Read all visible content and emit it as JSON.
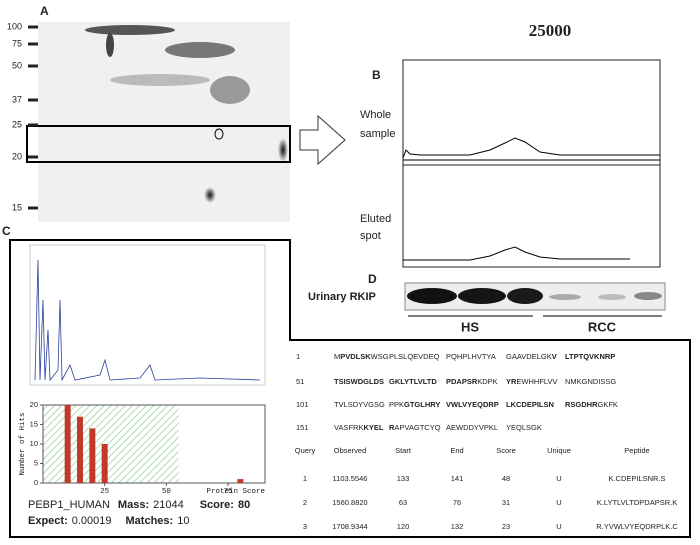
{
  "panel_a": {
    "label": "A",
    "markers": [
      "100",
      "75",
      "50",
      "37",
      "25",
      "20",
      "15"
    ]
  },
  "panel_b": {
    "label": "B",
    "title": "25000",
    "trace_1": [
      "Whole",
      "sample"
    ],
    "trace_2": [
      "Eluted",
      "spot"
    ]
  },
  "panel_c": {
    "label": "C",
    "histogram": {
      "ylabel": "Number of Hits",
      "xlabel": "Protein Score",
      "color": "#c0392b",
      "xlim": [
        0,
        90
      ],
      "ylim": [
        0,
        20
      ],
      "xticks": [
        25,
        50,
        75
      ],
      "yticks": [
        0,
        5,
        10,
        15,
        20
      ],
      "x": [
        10,
        15,
        20,
        25,
        80
      ],
      "values": [
        20,
        17,
        14,
        10,
        1
      ]
    },
    "protein": "PEBP1_HUMAN",
    "mass_label": "Mass:",
    "mass": "21044",
    "score_label": "Score:",
    "score": "80",
    "expect_label": "Expect:",
    "expect": "0.00019",
    "matches_label": "Matches:",
    "matches": "10"
  },
  "panel_d": {
    "label": "D",
    "row_label": "Urinary RKIP",
    "groups": [
      "HS",
      "RCC"
    ]
  },
  "sequence": [
    {
      "pos": "1",
      "columns": [
        [
          {
            "text": "M",
            "bold": false
          },
          {
            "text": "PVDLSK",
            "bold": true
          },
          {
            "text": "WSG",
            "bold": false
          }
        ],
        [
          {
            "text": "PLSLQEVDEQ",
            "bold": false
          }
        ],
        [
          {
            "text": "PQHPLHVTYA",
            "bold": false
          }
        ],
        [
          {
            "text": "GAAVDELGK",
            "bold": false
          },
          {
            "text": "V",
            "bold": true
          }
        ],
        [
          {
            "text": "LTPTQVKNRP",
            "bold": true
          }
        ]
      ]
    },
    {
      "pos": "51",
      "columns": [
        [
          {
            "text": "TSISWDGLDS",
            "bold": true
          }
        ],
        [
          {
            "text": "GKLYTLVLTD",
            "bold": true
          }
        ],
        [
          {
            "text": "PDAPSR",
            "bold": true
          },
          {
            "text": "KDPK",
            "bold": false
          }
        ],
        [
          {
            "text": "YR",
            "bold": true
          },
          {
            "text": "EWHHFLVV",
            "bold": false
          }
        ],
        [
          {
            "text": "NMKGNDISSG",
            "bold": false
          }
        ]
      ]
    },
    {
      "pos": "101",
      "columns": [
        [
          {
            "text": "TVLSDYVGSG",
            "bold": false
          }
        ],
        [
          {
            "text": "PPK",
            "bold": false
          },
          {
            "text": "GTGLHRY",
            "bold": true
          }
        ],
        [
          {
            "text": "VWLVYEQDRP",
            "bold": true
          }
        ],
        [
          {
            "text": "LKCDEPILSN",
            "bold": true
          }
        ],
        [
          {
            "text": "RSGDHR",
            "bold": true
          },
          {
            "text": "GKFK",
            "bold": false
          }
        ]
      ]
    },
    {
      "pos": "151",
      "columns": [
        [
          {
            "text": "VASFRK",
            "bold": false
          },
          {
            "text": "KYEL",
            "bold": true
          }
        ],
        [
          {
            "text": "R",
            "bold": true
          },
          {
            "text": "APVAGTCYQ",
            "bold": false
          }
        ],
        [
          {
            "text": "AEWDDYVPKL",
            "bold": false
          }
        ],
        [
          {
            "text": "YEQLSGK",
            "bold": false
          }
        ]
      ]
    }
  ],
  "table": {
    "header": [
      "Query",
      "Observed",
      "Start",
      "End",
      "Score",
      "Unique",
      "Peptide"
    ],
    "rows": [
      [
        "1",
        "1103.5546",
        "133",
        "141",
        "48",
        "U",
        "K.CDEPILSNR.S"
      ],
      [
        "2",
        "1560.8820",
        "63",
        "76",
        "31",
        "U",
        "K.LYTLVLTDPDAPSR.K"
      ],
      [
        "3",
        "1708.9344",
        "120",
        "132",
        "23",
        "U",
        "R.YVWLVYEQDRPLK.C"
      ]
    ]
  }
}
